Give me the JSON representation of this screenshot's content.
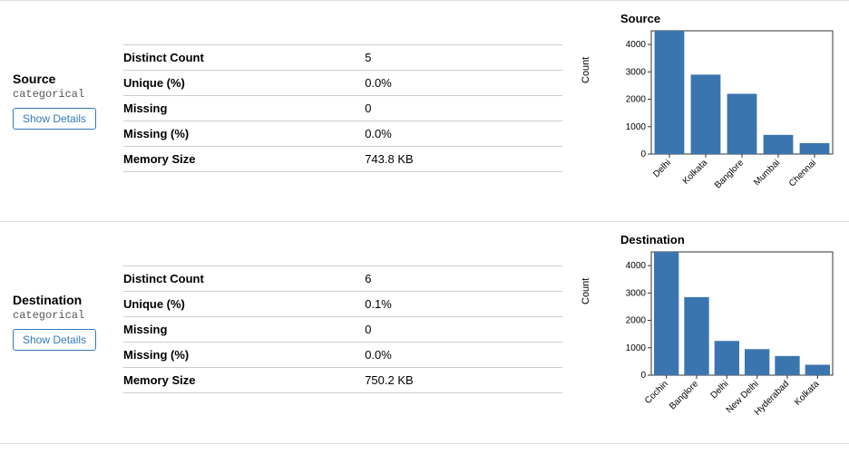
{
  "panels": [
    {
      "header": {
        "name": "Source",
        "type": "categorical",
        "button": "Show Details"
      },
      "stats": [
        {
          "label": "Distinct Count",
          "value": "5"
        },
        {
          "label": "Unique (%)",
          "value": "0.0%"
        },
        {
          "label": "Missing",
          "value": "0"
        },
        {
          "label": "Missing (%)",
          "value": "0.0%"
        },
        {
          "label": "Memory Size",
          "value": "743.8 KB"
        }
      ],
      "chart": {
        "type": "bar",
        "title": "Source",
        "ylabel": "Count",
        "ylim": [
          0,
          4500
        ],
        "ytick_step": 1000,
        "bar_color": "#3b75af",
        "axis_color": "#333333",
        "grid_color": "#333333",
        "categories": [
          "Delhi",
          "Kolkata",
          "Banglore",
          "Mumbai",
          "Chennai"
        ],
        "values": [
          4500,
          2900,
          2200,
          700,
          400
        ],
        "bar_width_ratio": 0.82,
        "label_rotation_deg": 45
      }
    },
    {
      "header": {
        "name": "Destination",
        "type": "categorical",
        "button": "Show Details"
      },
      "stats": [
        {
          "label": "Distinct Count",
          "value": "6"
        },
        {
          "label": "Unique (%)",
          "value": "0.1%"
        },
        {
          "label": "Missing",
          "value": "0"
        },
        {
          "label": "Missing (%)",
          "value": "0.0%"
        },
        {
          "label": "Memory Size",
          "value": "750.2 KB"
        }
      ],
      "chart": {
        "type": "bar",
        "title": "Destination",
        "ylabel": "Count",
        "ylim": [
          0,
          4500
        ],
        "ytick_step": 1000,
        "bar_color": "#3b75af",
        "axis_color": "#333333",
        "grid_color": "#333333",
        "categories": [
          "Cochin",
          "Banglore",
          "Delhi",
          "New Delhi",
          "Hyderabad",
          "Kolkata"
        ],
        "values": [
          4500,
          2850,
          1250,
          950,
          700,
          380
        ],
        "bar_width_ratio": 0.82,
        "label_rotation_deg": 45
      }
    }
  ]
}
